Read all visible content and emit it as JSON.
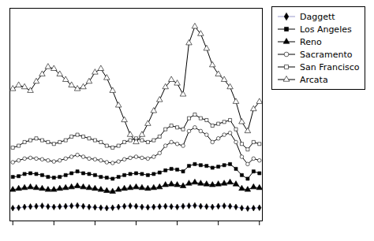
{
  "chart_data": {
    "type": "line",
    "x": [
      0,
      1,
      2,
      3,
      4,
      5,
      6,
      7,
      8,
      9,
      10,
      11,
      12,
      13,
      14,
      15,
      16,
      17,
      18,
      19,
      20,
      21,
      22,
      23,
      24,
      25,
      26,
      27,
      28,
      29,
      30,
      31,
      32,
      33,
      34,
      35,
      36,
      37,
      38,
      39,
      40,
      41,
      42
    ],
    "series": [
      {
        "name": "Daggett",
        "color": "#9999cc",
        "marker": "diamond",
        "values": [
          3.5,
          3.6,
          3.8,
          3.9,
          4.0,
          4.1,
          3.9,
          3.8,
          3.9,
          4.0,
          4.1,
          4.2,
          4.0,
          3.8,
          3.7,
          3.6,
          3.5,
          3.6,
          3.8,
          4.0,
          4.1,
          4.0,
          3.8,
          3.7,
          3.8,
          3.9,
          4.0,
          3.9,
          3.8,
          4.0,
          4.1,
          4.2,
          4.0,
          3.9,
          3.8,
          4.0,
          4.1,
          4.0,
          3.8,
          3.5,
          3.4,
          3.5,
          3.6
        ]
      },
      {
        "name": "Los Angeles",
        "color": "black",
        "marker": "square",
        "values": [
          12.0,
          12.2,
          12.8,
          13.0,
          12.8,
          12.5,
          12.0,
          11.8,
          12.0,
          12.5,
          13.0,
          13.5,
          13.0,
          12.8,
          12.5,
          12.0,
          11.8,
          11.5,
          12.0,
          12.5,
          12.8,
          13.0,
          12.8,
          12.5,
          12.8,
          13.2,
          13.8,
          14.2,
          14.0,
          13.5,
          15.0,
          15.5,
          15.2,
          15.0,
          14.5,
          14.8,
          15.2,
          15.5,
          14.2,
          12.5,
          11.5,
          13.5,
          13.0
        ]
      },
      {
        "name": "Reno",
        "color": "black",
        "marker": "triangle",
        "values": [
          8.5,
          8.8,
          9.0,
          9.2,
          9.0,
          8.8,
          8.5,
          8.5,
          8.8,
          9.0,
          9.2,
          9.5,
          9.2,
          9.0,
          8.8,
          8.5,
          8.2,
          8.0,
          8.5,
          8.8,
          9.0,
          9.2,
          9.0,
          8.8,
          9.0,
          9.2,
          9.8,
          10.0,
          9.8,
          9.5,
          10.2,
          10.5,
          10.2,
          10.0,
          9.8,
          10.0,
          10.2,
          10.5,
          10.0,
          8.8,
          8.5,
          9.2,
          9.0
        ]
      },
      {
        "name": "Sacramento",
        "color": "black",
        "marker": "circle-open",
        "values": [
          16.0,
          16.5,
          17.0,
          17.2,
          17.0,
          16.8,
          16.5,
          16.2,
          16.5,
          17.0,
          17.5,
          18.0,
          17.5,
          17.0,
          16.8,
          16.5,
          16.0,
          15.8,
          16.2,
          16.8,
          17.2,
          17.5,
          17.2,
          17.0,
          17.5,
          18.5,
          20.5,
          21.5,
          21.0,
          20.5,
          24.5,
          25.5,
          24.5,
          23.5,
          21.5,
          22.5,
          23.5,
          24.0,
          21.5,
          17.5,
          15.5,
          17.0,
          16.5
        ]
      },
      {
        "name": "San Francisco",
        "color": "black",
        "marker": "square-open",
        "values": [
          20.0,
          20.5,
          21.5,
          22.0,
          22.5,
          22.0,
          21.5,
          21.0,
          21.5,
          22.0,
          23.0,
          23.5,
          23.0,
          22.5,
          22.0,
          21.5,
          20.5,
          20.0,
          20.5,
          21.5,
          22.0,
          22.5,
          22.0,
          21.5,
          22.0,
          23.0,
          25.0,
          26.0,
          25.5,
          25.0,
          28.0,
          29.0,
          28.0,
          27.5,
          26.0,
          26.5,
          27.0,
          27.5,
          25.0,
          21.0,
          19.5,
          21.5,
          21.0
        ]
      },
      {
        "name": "Arcata",
        "color": "black",
        "marker": "triangle-open",
        "values": [
          36.0,
          37.0,
          36.5,
          35.5,
          38.0,
          40.0,
          42.0,
          41.5,
          40.0,
          38.5,
          37.0,
          36.0,
          36.5,
          38.0,
          40.5,
          41.5,
          39.0,
          35.5,
          31.5,
          27.5,
          23.5,
          21.5,
          23.5,
          26.5,
          30.0,
          33.0,
          36.5,
          38.5,
          37.5,
          34.5,
          48.5,
          53.0,
          51.0,
          47.0,
          42.5,
          40.0,
          38.5,
          36.5,
          32.5,
          27.0,
          24.5,
          30.5,
          32.5
        ]
      }
    ],
    "xlim": [
      -0.5,
      42.5
    ],
    "xticks": [
      0,
      7,
      14,
      21,
      28,
      35,
      42
    ],
    "ylim": [
      0,
      58
    ],
    "yticks": [],
    "tick_labels": false,
    "grid": false,
    "legend": "right"
  }
}
